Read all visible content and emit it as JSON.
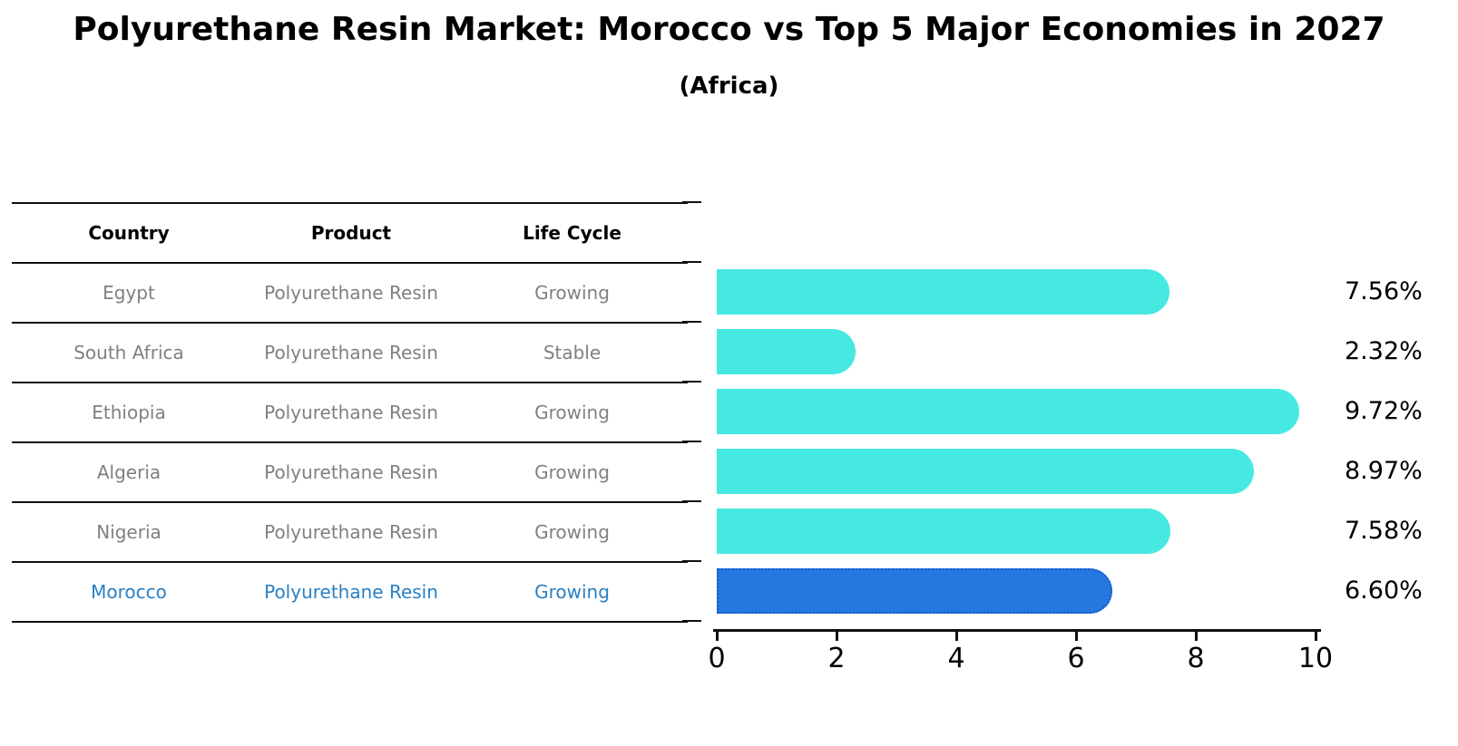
{
  "title": "Polyurethane Resin Market: Morocco vs Top 5 Major Economies in 2027",
  "subtitle": "(Africa)",
  "table": {
    "columns": [
      "Country",
      "Product",
      "Life Cycle"
    ],
    "rows": [
      {
        "country": "Egypt",
        "product": "Polyurethane Resin",
        "life_cycle": "Growing",
        "highlight": false
      },
      {
        "country": "South Africa",
        "product": "Polyurethane Resin",
        "life_cycle": "Stable",
        "highlight": false
      },
      {
        "country": "Ethiopia",
        "product": "Polyurethane Resin",
        "life_cycle": "Growing",
        "highlight": false
      },
      {
        "country": "Algeria",
        "product": "Polyurethane Resin",
        "life_cycle": "Growing",
        "highlight": false
      },
      {
        "country": "Nigeria",
        "product": "Polyurethane Resin",
        "life_cycle": "Growing",
        "highlight": false
      },
      {
        "country": "Morocco",
        "product": "Polyurethane Resin",
        "life_cycle": "Growing",
        "highlight": true
      }
    ]
  },
  "chart_data": {
    "type": "bar",
    "orientation": "horizontal",
    "title": "Polyurethane Resin Market: Morocco vs Top 5 Major Economies in 2027",
    "subtitle": "(Africa)",
    "categories": [
      "Egypt",
      "South Africa",
      "Ethiopia",
      "Algeria",
      "Nigeria",
      "Morocco"
    ],
    "values": [
      7.56,
      2.32,
      9.72,
      8.97,
      7.58,
      6.6
    ],
    "value_labels": [
      "7.56%",
      "2.32%",
      "9.72%",
      "8.97%",
      "7.58%",
      "6.60%"
    ],
    "highlight_index": 5,
    "xlabel": "",
    "ylabel": "",
    "xlim": [
      0,
      10
    ],
    "xticks": [
      0,
      2,
      4,
      6,
      8,
      10
    ],
    "xtick_labels": [
      "0",
      "2",
      "4",
      "6",
      "8",
      "10"
    ],
    "grid": false,
    "legend": false
  },
  "colors": {
    "bar": "#46E8E2",
    "highlight_bar": "#2478E0",
    "highlight_bar_border": "#1659C9",
    "highlight_text": "#2980C4",
    "table_text": "#808080",
    "axis": "#111111"
  }
}
